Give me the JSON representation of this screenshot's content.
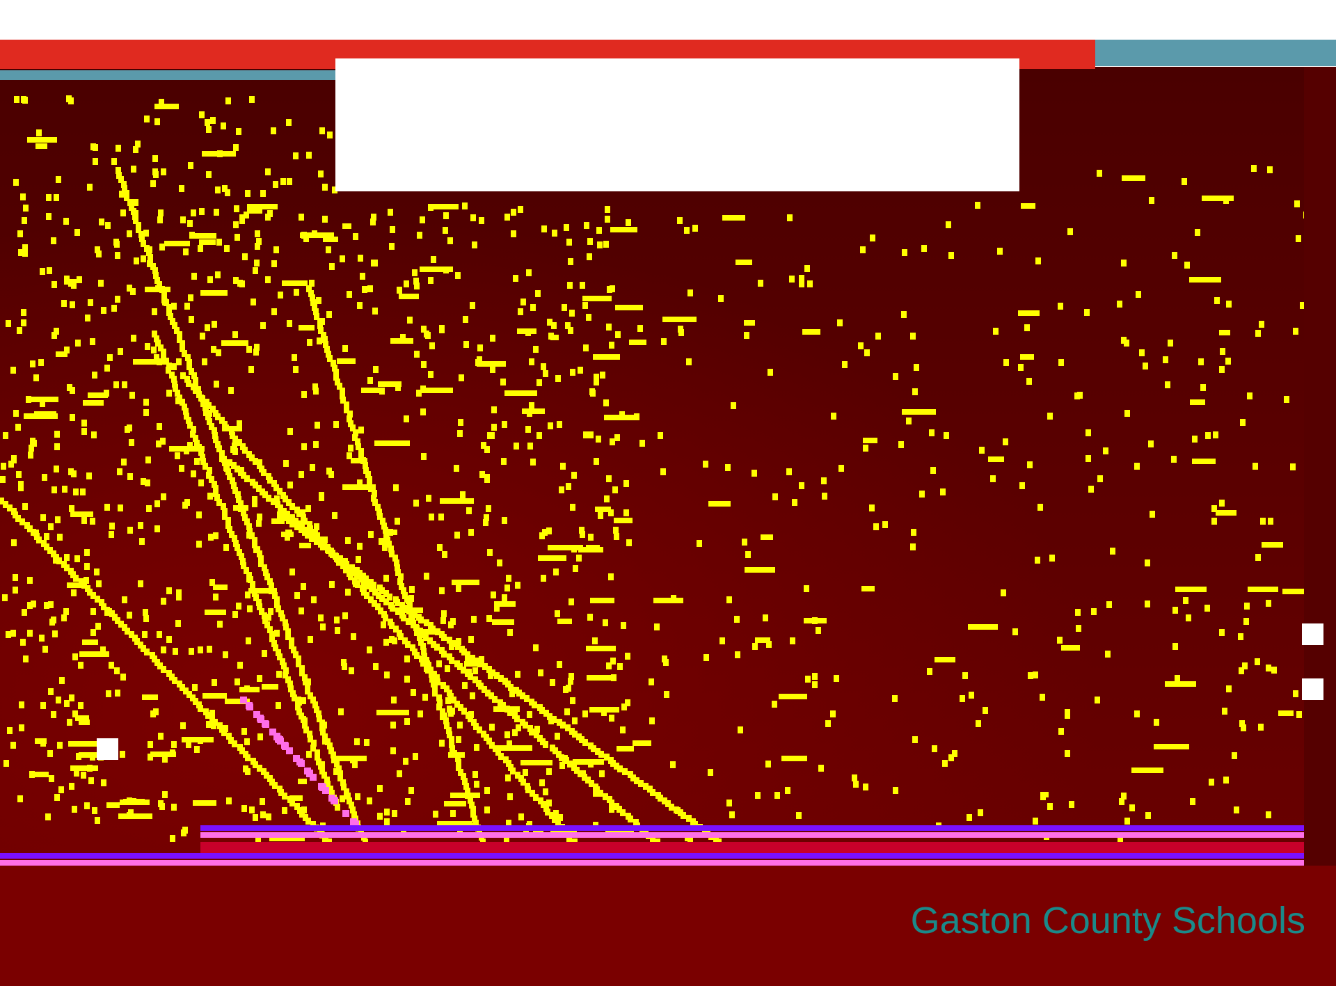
{
  "footer": {
    "organization": "Gaston County Schools"
  },
  "colors": {
    "accent_red": "#e02a20",
    "accent_teal": "#5b9aab",
    "accent_teal_text": "#1a8a8a",
    "background_dark_red": "#4a0000",
    "highlight_yellow": "#ffff00",
    "accent_violet": "#7a10ff",
    "accent_pink": "#ff6ee8"
  },
  "images": {
    "main_photo": "noise-pattern-image",
    "title_placeholder": "blank-white-box"
  }
}
